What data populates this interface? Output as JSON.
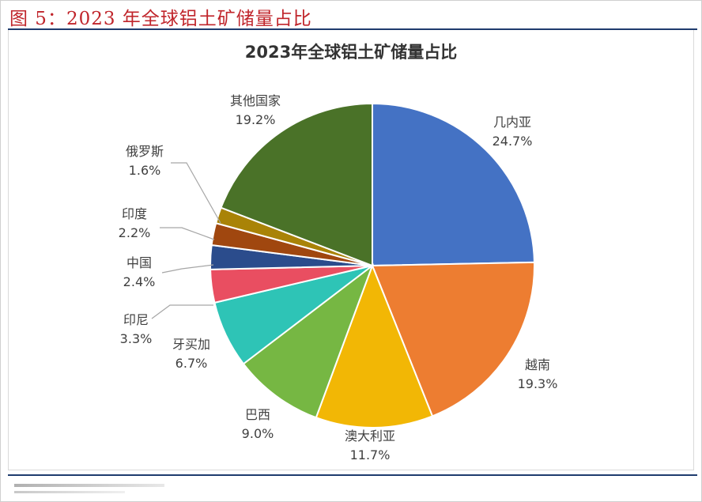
{
  "figure": {
    "caption": "图 5：2023 年全球铝土矿储量占比"
  },
  "chart_data": {
    "type": "pie",
    "title": "2023年全球铝土矿储量占比",
    "unit": "%",
    "slices": [
      {
        "name": "几内亚",
        "value": 24.7,
        "label": "24.7%",
        "color": "#4472C4"
      },
      {
        "name": "越南",
        "value": 19.3,
        "label": "19.3%",
        "color": "#ED7D31"
      },
      {
        "name": "澳大利亚",
        "value": 11.7,
        "label": "11.7%",
        "color": "#F2B705"
      },
      {
        "name": "巴西",
        "value": 9.0,
        "label": "9.0%",
        "color": "#76B743"
      },
      {
        "name": "牙买加",
        "value": 6.7,
        "label": "6.7%",
        "color": "#2EC4B6"
      },
      {
        "name": "印尼",
        "value": 3.3,
        "label": "3.3%",
        "color": "#E94E61"
      },
      {
        "name": "中国",
        "value": 2.4,
        "label": "2.4%",
        "color": "#2B4C8C"
      },
      {
        "name": "印度",
        "value": 2.2,
        "label": "2.2%",
        "color": "#A0470F"
      },
      {
        "name": "俄罗斯",
        "value": 1.6,
        "label": "1.6%",
        "color": "#A98307"
      },
      {
        "name": "其他国家",
        "value": 19.2,
        "label": "19.2%",
        "color": "#4A7228"
      }
    ]
  }
}
